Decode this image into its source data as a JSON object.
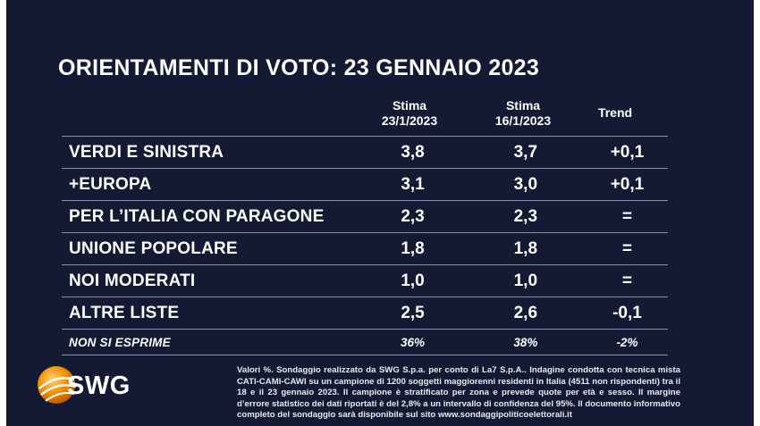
{
  "title": "ORIENTAMENTI DI VOTO: 23 GENNAIO 2023",
  "columns": {
    "col1_line1": "Stima",
    "col1_line2": "23/1/2023",
    "col2_line1": "Stima",
    "col2_line2": "16/1/2023",
    "col3": "Trend"
  },
  "chart_data": {
    "type": "table",
    "title": "ORIENTAMENTI DI VOTO: 23 GENNAIO 2023",
    "headers": [
      "",
      "Stima 23/1/2023",
      "Stima 16/1/2023",
      "Trend"
    ],
    "rows": [
      {
        "label": "VERDI E SINISTRA",
        "v1": "3,8",
        "v2": "3,7",
        "trend": "+0,1"
      },
      {
        "label": "+EUROPA",
        "v1": "3,1",
        "v2": "3,0",
        "trend": "+0,1"
      },
      {
        "label": "PER L’ITALIA CON PARAGONE",
        "v1": "2,3",
        "v2": "2,3",
        "trend": "="
      },
      {
        "label": "UNIONE POPOLARE",
        "v1": "1,8",
        "v2": "1,8",
        "trend": "="
      },
      {
        "label": "NOI MODERATI",
        "v1": "1,0",
        "v2": "1,0",
        "trend": "="
      },
      {
        "label": "ALTRE LISTE",
        "v1": "2,5",
        "v2": "2,6",
        "trend": "-0,1"
      },
      {
        "label": "NON SI ESPRIME",
        "v1": "36%",
        "v2": "38%",
        "trend": "-2%"
      }
    ]
  },
  "logo": {
    "text": "SWG"
  },
  "note": "Valori %. Sondaggio realizzato da SWG S.p.a. per conto di La7 S.p.A.. Indagine condotta con tecnica mista CATI-CAMI-CAWI su un campione di 1200 soggetti maggiorenni residenti in Italia (4511 non rispondenti) tra il 18 e il 23 gennaio 2023. Il campione è stratificato per zona e prevede quote per età e sesso. Il margine d’errore statistico dei dati riportati è del 2,8% a un intervallo di confidenza del 95%. Il documento informativo completo del sondaggio sarà disponibile sul sito www.sondaggipoliticoelettorali.it",
  "colors": {
    "background": "#141a33",
    "text": "#ffffff",
    "logo_orange": "#f39200"
  }
}
